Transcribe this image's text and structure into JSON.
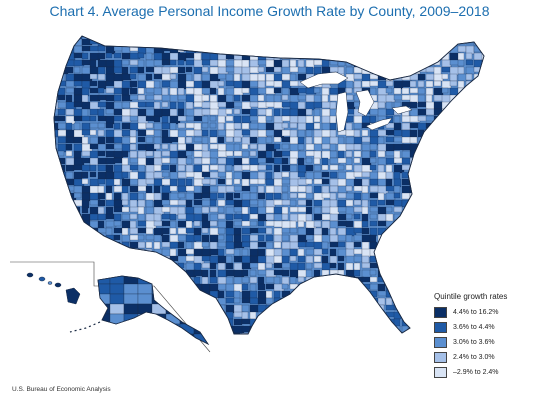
{
  "title": "Chart 4. Average Personal Income Growth Rate by County, 2009–2018",
  "legend": {
    "title": "Quintile growth rates",
    "items": [
      {
        "label": "4.4% to 16.2%",
        "color": "#0b2f66"
      },
      {
        "label": "3.6% to 4.4%",
        "color": "#1f5aa6"
      },
      {
        "label": "3.0% to 3.6%",
        "color": "#5b8fd0"
      },
      {
        "label": "2.4% to 3.0%",
        "color": "#a5c0e8"
      },
      {
        "label": "–2.9% to 2.4%",
        "color": "#d9e4f5"
      }
    ]
  },
  "source": "U.S. Bureau of Economic Analysis"
}
